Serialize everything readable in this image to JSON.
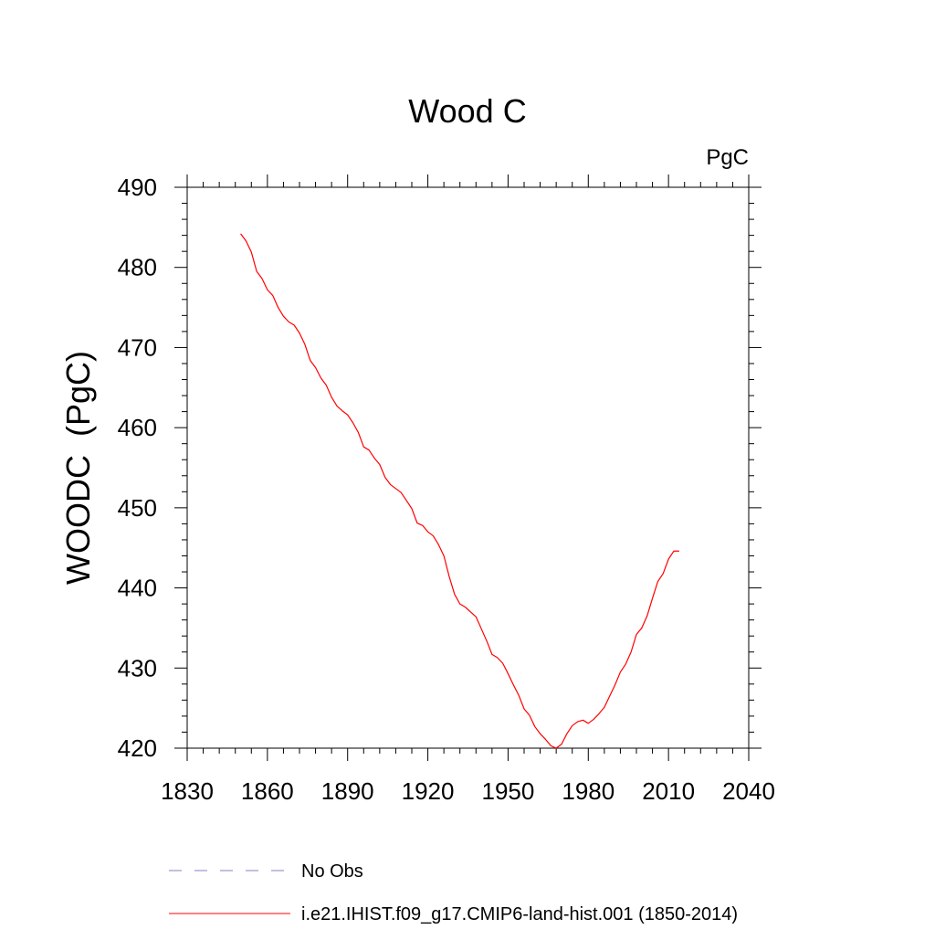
{
  "chart_data": {
    "type": "line",
    "title": "Wood C",
    "units_label": "PgC",
    "ylabel": "WOODC  (PgC)",
    "xlabel": "",
    "xlim": [
      1830,
      2040
    ],
    "ylim": [
      420,
      490
    ],
    "x_ticks": [
      1830,
      1860,
      1890,
      1920,
      1950,
      1980,
      2010,
      2040
    ],
    "y_ticks": [
      420,
      430,
      440,
      450,
      460,
      470,
      480,
      490
    ],
    "grid": false,
    "legend_position": "bottom",
    "colors": {
      "series": "#ff0000",
      "obs": "#8080c8",
      "axis": "#000000"
    },
    "legend": [
      {
        "label": "No Obs",
        "style": "dashed",
        "color": "#8080c8"
      },
      {
        "label": "i.e21.IHIST.f09_g17.CMIP6-land-hist.001 (1850-2014)",
        "style": "solid",
        "color": "#ff0000"
      }
    ],
    "series": [
      {
        "name": "i.e21.IHIST.f09_g17.CMIP6-land-hist.001 (1850-2014)",
        "x": [
          1850,
          1852,
          1854,
          1856,
          1858,
          1860,
          1862,
          1864,
          1866,
          1868,
          1870,
          1872,
          1874,
          1876,
          1878,
          1880,
          1882,
          1884,
          1886,
          1888,
          1890,
          1892,
          1894,
          1896,
          1898,
          1900,
          1902,
          1904,
          1906,
          1908,
          1910,
          1912,
          1914,
          1916,
          1918,
          1920,
          1922,
          1924,
          1926,
          1928,
          1930,
          1932,
          1934,
          1936,
          1938,
          1940,
          1942,
          1944,
          1946,
          1948,
          1950,
          1952,
          1954,
          1956,
          1958,
          1960,
          1962,
          1964,
          1966,
          1968,
          1970,
          1972,
          1974,
          1976,
          1978,
          1980,
          1982,
          1984,
          1986,
          1988,
          1990,
          1992,
          1994,
          1996,
          1998,
          2000,
          2002,
          2004,
          2006,
          2008,
          2010,
          2012,
          2014
        ],
        "values": [
          484.2,
          483.3,
          481.9,
          479.5,
          478.6,
          477.2,
          476.5,
          475.0,
          473.9,
          473.2,
          472.8,
          471.8,
          470.4,
          468.4,
          467.5,
          466.2,
          465.3,
          463.8,
          462.7,
          462.1,
          461.6,
          460.6,
          459.4,
          457.6,
          457.2,
          456.2,
          455.4,
          453.8,
          452.9,
          452.4,
          451.9,
          450.9,
          449.9,
          448.1,
          447.8,
          447.0,
          446.5,
          445.4,
          444.0,
          441.4,
          439.2,
          438.0,
          437.6,
          437.0,
          436.4,
          434.9,
          433.4,
          431.7,
          431.3,
          430.6,
          429.3,
          427.9,
          426.6,
          424.9,
          424.1,
          422.7,
          421.8,
          421.1,
          420.3,
          420.0,
          420.5,
          421.8,
          422.8,
          423.3,
          423.5,
          423.1,
          423.6,
          424.3,
          425.1,
          426.5,
          427.9,
          429.5,
          430.5,
          432.0,
          434.2,
          435.0,
          436.5,
          438.7,
          440.8,
          441.8,
          443.6,
          444.6,
          444.6
        ]
      }
    ]
  }
}
